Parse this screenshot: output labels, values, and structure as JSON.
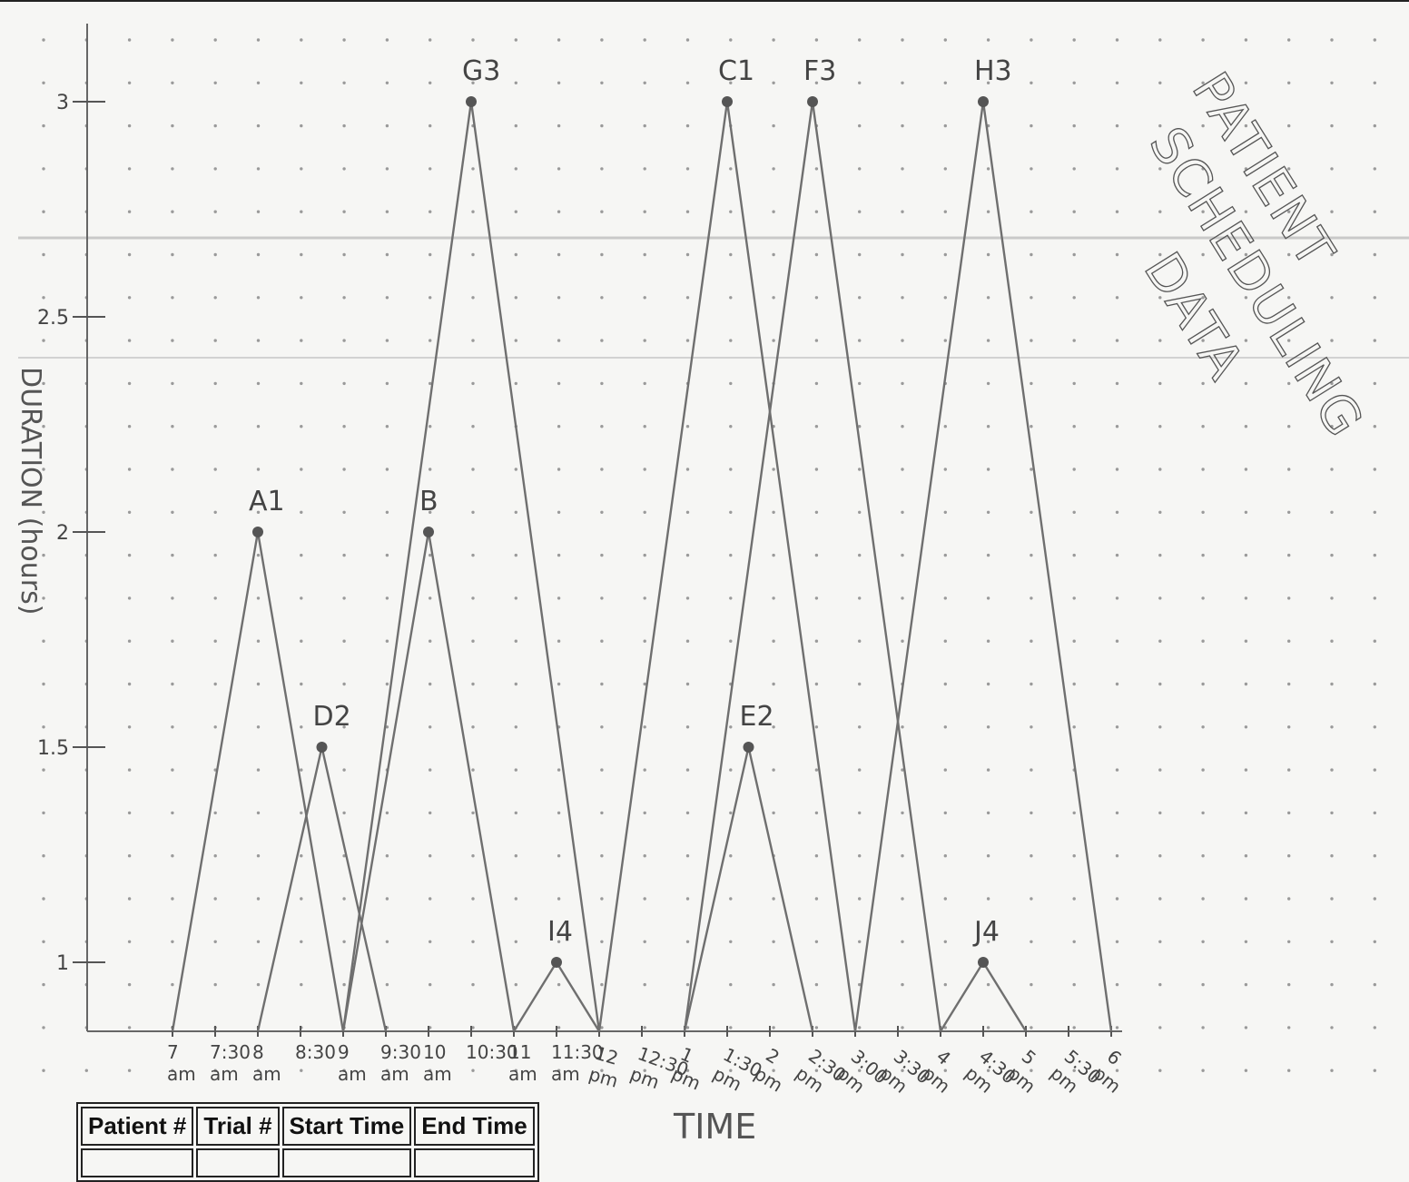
{
  "chart_data": {
    "type": "line",
    "title_lines": [
      "PATIENT",
      "SCHEDULING",
      "DATA"
    ],
    "xlabel": "TIME",
    "ylabel": "DURATION (hours)",
    "ylim": [
      0.7,
      3.1
    ],
    "yticks": [
      {
        "value": 1,
        "label": "1"
      },
      {
        "value": 1.5,
        "label": "1.5"
      },
      {
        "value": 2,
        "label": "2"
      },
      {
        "value": 2.5,
        "label": "2.5"
      },
      {
        "value": 3,
        "label": "3"
      }
    ],
    "xticks": [
      {
        "hour": 7,
        "label": [
          "7",
          "am"
        ]
      },
      {
        "hour": 7.5,
        "label": [
          "7:30",
          "am"
        ]
      },
      {
        "hour": 8,
        "label": [
          "8",
          "am"
        ]
      },
      {
        "hour": 8.5,
        "label": [
          "8:30",
          ""
        ]
      },
      {
        "hour": 9,
        "label": [
          "9",
          "am"
        ]
      },
      {
        "hour": 9.5,
        "label": [
          "9:30",
          "am"
        ]
      },
      {
        "hour": 10,
        "label": [
          "10",
          "am"
        ]
      },
      {
        "hour": 10.5,
        "label": [
          "10:30",
          ""
        ]
      },
      {
        "hour": 11,
        "label": [
          "11",
          "am"
        ]
      },
      {
        "hour": 11.5,
        "label": [
          "11:30",
          "am"
        ]
      },
      {
        "hour": 12,
        "label": [
          "12",
          "pm"
        ]
      },
      {
        "hour": 12.5,
        "label": [
          "12:30",
          "pm"
        ]
      },
      {
        "hour": 13,
        "label": [
          "1",
          "pm"
        ]
      },
      {
        "hour": 13.5,
        "label": [
          "1:30",
          "pm"
        ]
      },
      {
        "hour": 14,
        "label": [
          "2",
          "pm"
        ]
      },
      {
        "hour": 14.5,
        "label": [
          "2:30",
          "pm"
        ]
      },
      {
        "hour": 15,
        "label": [
          "3:00",
          "pm"
        ]
      },
      {
        "hour": 15.5,
        "label": [
          "3:30",
          "pm"
        ]
      },
      {
        "hour": 16,
        "label": [
          "4",
          "pm"
        ]
      },
      {
        "hour": 16.5,
        "label": [
          "4:30",
          "pm"
        ]
      },
      {
        "hour": 17,
        "label": [
          "5",
          "pm"
        ]
      },
      {
        "hour": 17.5,
        "label": [
          "5:30",
          "pm"
        ]
      },
      {
        "hour": 18,
        "label": [
          "6",
          "pm"
        ]
      }
    ],
    "series": [
      {
        "name": "A1",
        "start": 7,
        "end": 9,
        "duration": 2
      },
      {
        "name": "D2",
        "start": 8,
        "end": 9.5,
        "duration": 1.5
      },
      {
        "name": "B",
        "start": 9,
        "end": 11,
        "duration": 2
      },
      {
        "name": "G3",
        "start": 9,
        "end": 12,
        "duration": 3
      },
      {
        "name": "I4",
        "start": 11,
        "end": 12,
        "duration": 1
      },
      {
        "name": "C1",
        "start": 12,
        "end": 15,
        "duration": 3
      },
      {
        "name": "E2",
        "start": 13,
        "end": 14.5,
        "duration": 1.5
      },
      {
        "name": "F3",
        "start": 13,
        "end": 16,
        "duration": 3
      },
      {
        "name": "H3",
        "start": 15,
        "end": 18,
        "duration": 3
      },
      {
        "name": "J4",
        "start": 16,
        "end": 17,
        "duration": 1
      }
    ],
    "grid": "dots"
  },
  "table": {
    "headers": [
      "Patient #",
      "Trial #",
      "Start Time",
      "End Time"
    ]
  }
}
